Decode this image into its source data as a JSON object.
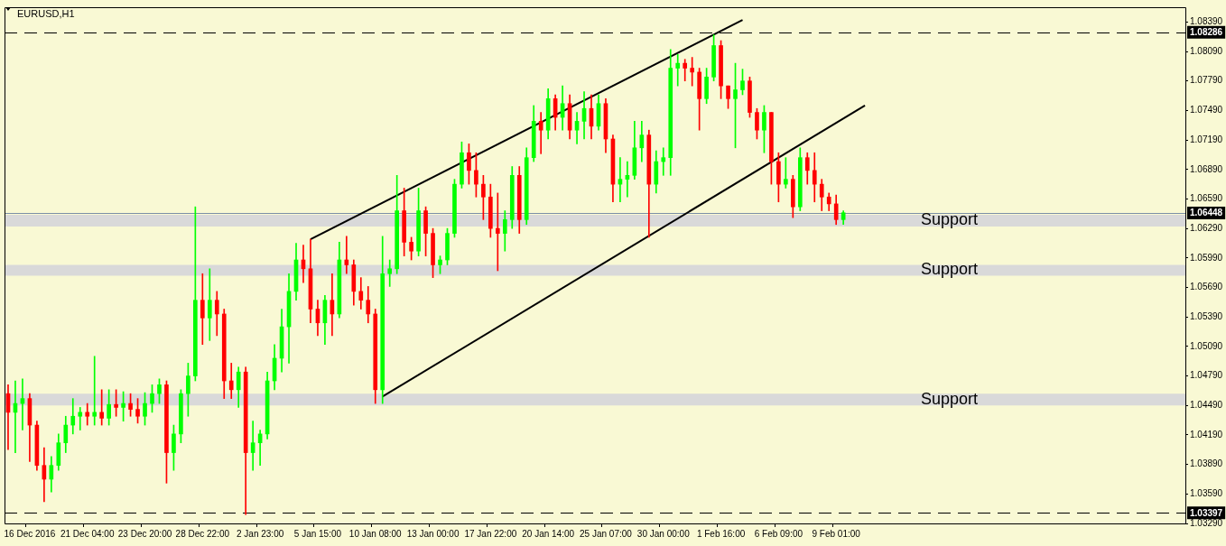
{
  "chart_data": {
    "type": "candlestick",
    "title": "EURUSD,H1",
    "categories": [
      null,
      null,
      null,
      "16 Dec 2016",
      null,
      null,
      null,
      null,
      null,
      null,
      null,
      "21 Dec 04:00",
      null,
      null,
      null,
      null,
      null,
      null,
      null,
      "23 Dec 20:00",
      null,
      null,
      null,
      null,
      null,
      null,
      null,
      "28 Dec 22:00",
      null,
      null,
      null,
      null,
      null,
      null,
      null,
      "2 Jan 23:00",
      null,
      null,
      null,
      null,
      null,
      null,
      null,
      "5 Jan 15:00",
      null,
      null,
      null,
      null,
      null,
      null,
      null,
      "10 Jan 08:00",
      null,
      null,
      null,
      null,
      null,
      null,
      null,
      "13 Jan 00:00",
      null,
      null,
      null,
      null,
      null,
      null,
      null,
      "17 Jan 22:00",
      null,
      null,
      null,
      null,
      null,
      null,
      null,
      "20 Jan 14:00",
      null,
      null,
      null,
      null,
      null,
      null,
      null,
      "25 Jan 07:00",
      null,
      null,
      null,
      null,
      null,
      null,
      null,
      "30 Jan 00:00",
      null,
      null,
      null,
      null,
      null,
      null,
      null,
      "1 Feb 16:00",
      null,
      null,
      null,
      null,
      null,
      null,
      null,
      "6 Feb 09:00",
      null,
      null,
      null,
      null,
      null,
      null,
      null,
      "9 Feb 01:00",
      null,
      null,
      null,
      null,
      null,
      null,
      null,
      null,
      null,
      null,
      null,
      null,
      null,
      null,
      null,
      null,
      null,
      null,
      null,
      null,
      null,
      null,
      null,
      null,
      null,
      null,
      null,
      null,
      null,
      null,
      null,
      null,
      null,
      null,
      null,
      null,
      null,
      null,
      null,
      null,
      null,
      null,
      null,
      null,
      null,
      null,
      null,
      null
    ],
    "ohlc": [
      [
        1.0461,
        1.047,
        1.0404,
        1.0442
      ],
      [
        1.0442,
        1.0474,
        1.0401,
        1.0451
      ],
      [
        1.0451,
        1.0476,
        1.0424,
        1.0456
      ],
      [
        1.0456,
        1.0461,
        1.0392,
        1.0429
      ],
      [
        1.0429,
        1.0433,
        1.0383,
        1.0388
      ],
      [
        1.0388,
        1.0406,
        1.0351,
        1.0374
      ],
      [
        1.0374,
        1.0397,
        1.0361,
        1.0388
      ],
      [
        1.0388,
        1.042,
        1.0383,
        1.0411
      ],
      [
        1.0411,
        1.0438,
        1.0401,
        1.0429
      ],
      [
        1.0429,
        1.0456,
        1.042,
        1.0438
      ],
      [
        1.0438,
        1.0447,
        1.0424,
        1.0442
      ],
      [
        1.0442,
        1.0451,
        1.0429,
        1.0438
      ],
      [
        1.0438,
        1.0499,
        1.0429,
        1.0442
      ],
      [
        1.0442,
        1.0465,
        1.0429,
        1.0436
      ],
      [
        1.0436,
        1.0465,
        1.0429,
        1.045
      ],
      [
        1.045,
        1.0465,
        1.0438,
        1.0447
      ],
      [
        1.0447,
        1.0463,
        1.0433,
        1.0451
      ],
      [
        1.0451,
        1.0461,
        1.0438,
        1.0445
      ],
      [
        1.0445,
        1.0456,
        1.0431,
        1.0438
      ],
      [
        1.0438,
        1.0462,
        1.0429,
        1.0451
      ],
      [
        1.0451,
        1.047,
        1.0442,
        1.0461
      ],
      [
        1.0461,
        1.0476,
        1.0451,
        1.047
      ],
      [
        1.047,
        1.0474,
        1.037,
        1.0401
      ],
      [
        1.0401,
        1.0429,
        1.0383,
        1.042
      ],
      [
        1.042,
        1.0465,
        1.0411,
        1.0461
      ],
      [
        1.0461,
        1.0492,
        1.0438,
        1.0479
      ],
      [
        1.0479,
        1.0651,
        1.0474,
        1.0556
      ],
      [
        1.0556,
        1.0583,
        1.0511,
        1.0538
      ],
      [
        1.0538,
        1.0588,
        1.0515,
        1.0556
      ],
      [
        1.0556,
        1.0565,
        1.052,
        1.0542
      ],
      [
        1.0542,
        1.0547,
        1.0456,
        1.0474
      ],
      [
        1.0474,
        1.0492,
        1.0456,
        1.0465
      ],
      [
        1.0465,
        1.0488,
        1.0447,
        1.0483
      ],
      [
        1.0483,
        1.0488,
        1.0338,
        1.0401
      ],
      [
        1.0401,
        1.0433,
        1.0383,
        1.0411
      ],
      [
        1.0411,
        1.0424,
        1.0388,
        1.042
      ],
      [
        1.042,
        1.0483,
        1.0415,
        1.0474
      ],
      [
        1.0474,
        1.0511,
        1.0465,
        1.0497
      ],
      [
        1.0497,
        1.0547,
        1.0483,
        1.0529
      ],
      [
        1.0529,
        1.0583,
        1.0492,
        1.0565
      ],
      [
        1.0565,
        1.0614,
        1.0556,
        1.0597
      ],
      [
        1.0597,
        1.0612,
        1.0574,
        1.0588
      ],
      [
        1.0588,
        1.0618,
        1.0533,
        1.0547
      ],
      [
        1.0547,
        1.0556,
        1.052,
        1.0533
      ],
      [
        1.0533,
        1.0561,
        1.0511,
        1.0556
      ],
      [
        1.0556,
        1.0583,
        1.052,
        1.0542
      ],
      [
        1.0542,
        1.0615,
        1.0538,
        1.0597
      ],
      [
        1.0597,
        1.0621,
        1.0583,
        1.0592
      ],
      [
        1.0592,
        1.0597,
        1.0551,
        1.0565
      ],
      [
        1.0565,
        1.0579,
        1.0547,
        1.0556
      ],
      [
        1.0556,
        1.057,
        1.0533,
        1.0542
      ],
      [
        1.0542,
        1.0547,
        1.0451,
        1.0465
      ],
      [
        1.0465,
        1.0621,
        1.0451,
        1.0583
      ],
      [
        1.0583,
        1.0597,
        1.057,
        1.0588
      ],
      [
        1.0588,
        1.0683,
        1.0583,
        1.0647
      ],
      [
        1.0647,
        1.067,
        1.0601,
        1.0615
      ],
      [
        1.0615,
        1.062,
        1.0597,
        1.0606
      ],
      [
        1.0606,
        1.067,
        1.0601,
        1.0647
      ],
      [
        1.0647,
        1.0651,
        1.0601,
        1.0624
      ],
      [
        1.0624,
        1.0629,
        1.0579,
        1.0592
      ],
      [
        1.0592,
        1.0601,
        1.0583,
        1.0597
      ],
      [
        1.0597,
        1.0629,
        1.0592,
        1.0624
      ],
      [
        1.0624,
        1.0679,
        1.062,
        1.0674
      ],
      [
        1.0674,
        1.0717,
        1.067,
        1.0706
      ],
      [
        1.0706,
        1.0715,
        1.0674,
        1.0688
      ],
      [
        1.0688,
        1.0706,
        1.0661,
        1.0674
      ],
      [
        1.0674,
        1.0683,
        1.0638,
        1.0661
      ],
      [
        1.0661,
        1.0674,
        1.062,
        1.0629
      ],
      [
        1.0629,
        1.0665,
        1.0586,
        1.0624
      ],
      [
        1.0624,
        1.0647,
        1.0606,
        1.0638
      ],
      [
        1.0638,
        1.0692,
        1.0629,
        1.0683
      ],
      [
        1.0683,
        1.0692,
        1.0624,
        1.0638
      ],
      [
        1.0638,
        1.0711,
        1.0633,
        1.0701
      ],
      [
        1.0701,
        1.0754,
        1.0697,
        1.0738
      ],
      [
        1.0738,
        1.0747,
        1.0705,
        1.0729
      ],
      [
        1.0729,
        1.0771,
        1.072,
        1.0761
      ],
      [
        1.0761,
        1.0765,
        1.0729,
        1.0742
      ],
      [
        1.0742,
        1.0774,
        1.0729,
        1.0756
      ],
      [
        1.0756,
        1.0765,
        1.072,
        1.0729
      ],
      [
        1.0729,
        1.0747,
        1.0715,
        1.0738
      ],
      [
        1.0738,
        1.0768,
        1.072,
        1.0751
      ],
      [
        1.0751,
        1.0765,
        1.072,
        1.0733
      ],
      [
        1.0733,
        1.0765,
        1.0729,
        1.0756
      ],
      [
        1.0756,
        1.0761,
        1.0706,
        1.072
      ],
      [
        1.072,
        1.0724,
        1.0656,
        1.0674
      ],
      [
        1.0674,
        1.0701,
        1.0656,
        1.0679
      ],
      [
        1.0679,
        1.0697,
        1.0661,
        1.0683
      ],
      [
        1.0683,
        1.0738,
        1.0679,
        1.0711
      ],
      [
        1.0711,
        1.0738,
        1.0697,
        1.0724
      ],
      [
        1.0724,
        1.0729,
        1.062,
        1.0674
      ],
      [
        1.0674,
        1.0708,
        1.0665,
        1.0697
      ],
      [
        1.0697,
        1.0711,
        1.0683,
        1.0701
      ],
      [
        1.0701,
        1.0811,
        1.0683,
        1.0792
      ],
      [
        1.0792,
        1.0806,
        1.0774,
        1.0797
      ],
      [
        1.0797,
        1.0801,
        1.0779,
        1.0792
      ],
      [
        1.0792,
        1.0803,
        1.0774,
        1.0788
      ],
      [
        1.0788,
        1.0792,
        1.0729,
        1.0761
      ],
      [
        1.0761,
        1.0792,
        1.0756,
        1.0783
      ],
      [
        1.0783,
        1.0826,
        1.0779,
        1.0815
      ],
      [
        1.0815,
        1.082,
        1.0761,
        1.0774
      ],
      [
        1.0774,
        1.0774,
        1.0751,
        1.0761
      ],
      [
        1.0761,
        1.0797,
        1.0711,
        1.077
      ],
      [
        1.077,
        1.0791,
        1.0765,
        1.0779
      ],
      [
        1.0779,
        1.0783,
        1.0742,
        1.0747
      ],
      [
        1.0747,
        1.0751,
        1.072,
        1.0729
      ],
      [
        1.0729,
        1.0754,
        1.0706,
        1.0747
      ],
      [
        1.0747,
        1.0747,
        1.0674,
        1.0697
      ],
      [
        1.0697,
        1.0706,
        1.0656,
        1.0674
      ],
      [
        1.0674,
        1.0701,
        1.067,
        1.0679
      ],
      [
        1.0679,
        1.0683,
        1.064,
        1.0651
      ],
      [
        1.0651,
        1.0711,
        1.0647,
        1.0701
      ],
      [
        1.0701,
        1.0706,
        1.0674,
        1.0688
      ],
      [
        1.0688,
        1.0706,
        1.0656,
        1.0674
      ],
      [
        1.0674,
        1.0679,
        1.0647,
        1.0661
      ],
      [
        1.0661,
        1.0665,
        1.0647,
        1.0654
      ],
      [
        1.0654,
        1.0663,
        1.0633,
        1.0638
      ],
      [
        1.0638,
        1.0647,
        1.0633,
        1.0645
      ],
      null,
      null,
      null,
      null,
      null,
      null,
      null,
      null,
      null,
      null,
      null,
      null,
      null,
      null,
      null,
      null,
      null,
      null,
      null,
      null,
      null,
      null,
      null,
      null,
      null,
      null,
      null,
      null,
      null,
      null,
      null,
      null,
      null,
      null,
      null,
      null,
      null,
      null,
      null,
      null,
      null,
      null,
      null,
      null,
      null,
      null,
      null
    ],
    "colors": [
      "#ff0000",
      "#00ff00",
      "#00ff00",
      "#ff0000",
      "#ff0000",
      "#ff0000",
      "#00ff00",
      "#00ff00",
      "#00ff00",
      "#00ff00",
      "#00ff00",
      "#ff0000",
      "#00ff00",
      "#ff0000",
      "#00ff00",
      "#ff0000",
      "#00ff00",
      "#ff0000",
      "#ff0000",
      "#00ff00",
      "#00ff00",
      "#00ff00",
      "#ff0000",
      "#00ff00",
      "#00ff00",
      "#00ff00",
      "#00ff00",
      "#ff0000",
      "#00ff00",
      "#ff0000",
      "#ff0000",
      "#ff0000",
      "#00ff00",
      "#ff0000",
      "#00ff00",
      "#00ff00",
      "#00ff00",
      "#00ff00",
      "#00ff00",
      "#00ff00",
      "#00ff00",
      "#ff0000",
      "#ff0000",
      "#ff0000",
      "#00ff00",
      "#ff0000",
      "#00ff00",
      "#ff0000",
      "#ff0000",
      "#ff0000",
      "#ff0000",
      "#ff0000",
      "#00ff00",
      "#00ff00",
      "#00ff00",
      "#ff0000",
      "#ff0000",
      "#00ff00",
      "#ff0000",
      "#ff0000",
      "#00ff00",
      "#00ff00",
      "#00ff00",
      "#00ff00",
      "#ff0000",
      "#ff0000",
      "#ff0000",
      "#ff0000",
      "#ff0000",
      "#00ff00",
      "#00ff00",
      "#ff0000",
      "#00ff00",
      "#00ff00",
      "#ff0000",
      "#00ff00",
      "#ff0000",
      "#00ff00",
      "#ff0000",
      "#00ff00",
      "#00ff00",
      "#ff0000",
      "#00ff00",
      "#ff0000",
      "#ff0000",
      "#00ff00",
      "#00ff00",
      "#00ff00",
      "#00ff00",
      "#ff0000",
      "#00ff00",
      "#00ff00",
      "#00ff00",
      "#00ff00",
      "#ff0000",
      "#ff0000",
      "#ff0000",
      "#00ff00",
      "#00ff00",
      "#ff0000",
      "#ff0000",
      "#00ff00",
      "#00ff00",
      "#ff0000",
      "#ff0000",
      "#00ff00",
      "#ff0000",
      "#ff0000",
      "#00ff00",
      "#ff0000",
      "#00ff00",
      "#ff0000",
      "#ff0000",
      "#ff0000",
      "#ff0000",
      "#ff0000",
      "#00ff00",
      null,
      null,
      null,
      null,
      null,
      null,
      null,
      null,
      null,
      null,
      null,
      null,
      null,
      null,
      null,
      null,
      null,
      null,
      null,
      null,
      null,
      null,
      null,
      null,
      null,
      null,
      null,
      null,
      null,
      null,
      null,
      null,
      null,
      null,
      null,
      null,
      null,
      null,
      null,
      null,
      null,
      null,
      null,
      null,
      null,
      null,
      null
    ],
    "series": [
      {
        "type": "line",
        "color": "#000000",
        "values": [
          null,
          null,
          null,
          null,
          null,
          null,
          null,
          null,
          null,
          null,
          null,
          null,
          null,
          null,
          null,
          null,
          null,
          null,
          null,
          null,
          null,
          null,
          null,
          null,
          null,
          null,
          null,
          null,
          null,
          null,
          null,
          null,
          null,
          null,
          null,
          null,
          null,
          null,
          null,
          null,
          null,
          null,
          1.0618,
          null,
          null,
          null,
          null,
          null,
          null,
          null,
          null,
          null,
          null,
          null,
          null,
          null,
          null,
          null,
          null,
          null,
          null,
          null,
          null,
          null,
          null,
          null,
          null,
          null,
          null,
          null,
          null,
          null,
          null,
          null,
          null,
          null,
          null,
          null,
          null,
          null,
          null,
          null,
          null,
          null,
          null,
          null,
          null,
          null,
          null,
          null,
          null,
          null,
          null,
          null,
          null,
          null,
          null,
          null,
          null,
          null,
          null,
          null,
          1.0841,
          null,
          null,
          null,
          null,
          null,
          null,
          null,
          null,
          null,
          null,
          null,
          null,
          null,
          null,
          null,
          null,
          null,
          null,
          null,
          null,
          null,
          null,
          null,
          null,
          null,
          null,
          null,
          null,
          null,
          null,
          null,
          null,
          null,
          null,
          null,
          null,
          null,
          null,
          null,
          null,
          null,
          null,
          null,
          null,
          null,
          null,
          null,
          null,
          null,
          null,
          null,
          null,
          null,
          null,
          null,
          null,
          null,
          null,
          null,
          null,
          null
        ]
      },
      {
        "type": "line",
        "color": "#000000",
        "values": [
          null,
          null,
          null,
          null,
          null,
          null,
          null,
          null,
          null,
          null,
          null,
          null,
          null,
          null,
          null,
          null,
          null,
          null,
          null,
          null,
          null,
          null,
          null,
          null,
          null,
          null,
          null,
          null,
          null,
          null,
          null,
          null,
          null,
          null,
          null,
          null,
          null,
          null,
          null,
          null,
          null,
          null,
          null,
          null,
          null,
          null,
          null,
          null,
          null,
          null,
          null,
          null,
          1.0458,
          null,
          null,
          null,
          null,
          null,
          null,
          null,
          null,
          null,
          null,
          null,
          null,
          null,
          null,
          null,
          null,
          null,
          null,
          null,
          null,
          null,
          null,
          null,
          null,
          null,
          null,
          null,
          null,
          null,
          null,
          null,
          null,
          null,
          null,
          null,
          null,
          null,
          null,
          null,
          null,
          null,
          null,
          null,
          null,
          null,
          null,
          null,
          null,
          null,
          null,
          null,
          null,
          null,
          null,
          null,
          null,
          null,
          null,
          null,
          null,
          null,
          null,
          null,
          null,
          null,
          null,
          1.0754,
          null,
          null,
          null,
          null,
          null,
          null,
          null,
          null,
          null,
          null,
          null,
          null,
          null,
          null,
          null,
          null,
          null,
          null,
          null,
          null,
          null,
          null,
          null,
          null,
          null,
          null,
          null,
          null,
          null,
          null,
          null,
          null,
          null,
          null,
          null,
          null,
          null,
          null,
          null,
          null,
          null,
          null,
          null,
          null
        ]
      }
    ],
    "ylim": [
      1.0329,
      1.0854
    ],
    "yticks": [
      {
        "value": 1.0329,
        "label": "1.03290"
      },
      {
        "value": 1.0359,
        "label": "1.03590"
      },
      {
        "value": 1.0389,
        "label": "1.03890"
      },
      {
        "value": 1.0419,
        "label": "1.04190"
      },
      {
        "value": 1.0449,
        "label": "1.04490"
      },
      {
        "value": 1.0479,
        "label": "1.04790"
      },
      {
        "value": 1.0509,
        "label": "1.05090"
      },
      {
        "value": 1.0539,
        "label": "1.05390"
      },
      {
        "value": 1.0569,
        "label": "1.05690"
      },
      {
        "value": 1.0599,
        "label": "1.05990"
      },
      {
        "value": 1.0629,
        "label": "1.06290"
      },
      {
        "value": 1.0659,
        "label": "1.06590"
      },
      {
        "value": 1.0689,
        "label": "1.06890"
      },
      {
        "value": 1.0719,
        "label": "1.07190"
      },
      {
        "value": 1.0749,
        "label": "1.07490"
      },
      {
        "value": 1.0779,
        "label": "1.07790"
      },
      {
        "value": 1.0809,
        "label": "1.08090"
      },
      {
        "value": 1.0839,
        "label": "1.08390"
      }
    ],
    "grid": false,
    "legend": false,
    "ref_lines": [
      {
        "axis": "y",
        "value": 1.08286,
        "label": "1.08286",
        "color": "#000000",
        "line_style": "dashed"
      },
      {
        "axis": "y",
        "value": 1.06448,
        "label": "1.06448",
        "color": "#7b8fa6",
        "line_style": "solid"
      },
      {
        "axis": "y",
        "value": 1.03397,
        "label": "1.03397",
        "color": "#000000",
        "line_style": "dashed"
      }
    ],
    "bands": [
      {
        "axis": "y",
        "from": 1.0631,
        "to": 1.0643,
        "label": "Support",
        "color": "#d9d9d9"
      },
      {
        "axis": "y",
        "from": 1.0581,
        "to": 1.0592,
        "label": "Support",
        "color": "#d9d9d9"
      },
      {
        "axis": "y",
        "from": 1.0449,
        "to": 1.0461,
        "label": "Support",
        "color": "#d9d9d9"
      }
    ]
  }
}
